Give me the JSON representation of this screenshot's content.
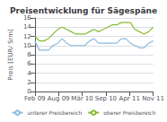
{
  "chart_data": {
    "type": "line",
    "title": "Preisentwicklung für Sägespäne",
    "ylabel": "Preis [EUR/ Srm]",
    "x": [
      0,
      1,
      2,
      3,
      4,
      5,
      6,
      7,
      8,
      9,
      10,
      11,
      12,
      13,
      14,
      15,
      16,
      17,
      18,
      19,
      20,
      21,
      22,
      23,
      24,
      25,
      26
    ],
    "xlim": [
      0,
      26
    ],
    "xticks": [
      {
        "value": 0,
        "label": "Feb 09"
      },
      {
        "value": 5.2,
        "label": "Aug 09"
      },
      {
        "value": 10.4,
        "label": "Mär 10"
      },
      {
        "value": 15.6,
        "label": "Sep 10"
      },
      {
        "value": 20.8,
        "label": "Apr 11"
      },
      {
        "value": 26,
        "label": "Nov 11"
      }
    ],
    "ylim": [
      0,
      16
    ],
    "yticks": [
      0,
      2,
      4,
      6,
      8,
      10,
      12,
      14,
      16
    ],
    "grid": true,
    "legend": "bottom",
    "series": [
      {
        "name": "unterer Preisbereich",
        "color": "#88bbdd",
        "values": [
          11.0,
          9.0,
          9.0,
          9.0,
          10.0,
          10.5,
          11.5,
          10.5,
          10.0,
          10.0,
          10.0,
          10.0,
          11.0,
          11.5,
          10.5,
          10.5,
          10.5,
          10.5,
          10.5,
          11.5,
          11.5,
          10.5,
          10.0,
          9.5,
          9.5,
          10.5,
          11.0
        ]
      },
      {
        "name": "oberer Preisbereich",
        "color": "#88bb33",
        "values": [
          12.0,
          11.0,
          11.0,
          11.5,
          12.5,
          13.5,
          14.0,
          13.5,
          13.0,
          12.5,
          12.5,
          12.5,
          13.0,
          13.5,
          13.0,
          13.5,
          14.0,
          14.5,
          14.5,
          15.0,
          15.0,
          15.0,
          13.5,
          13.0,
          12.5,
          13.0,
          14.0
        ]
      }
    ]
  }
}
